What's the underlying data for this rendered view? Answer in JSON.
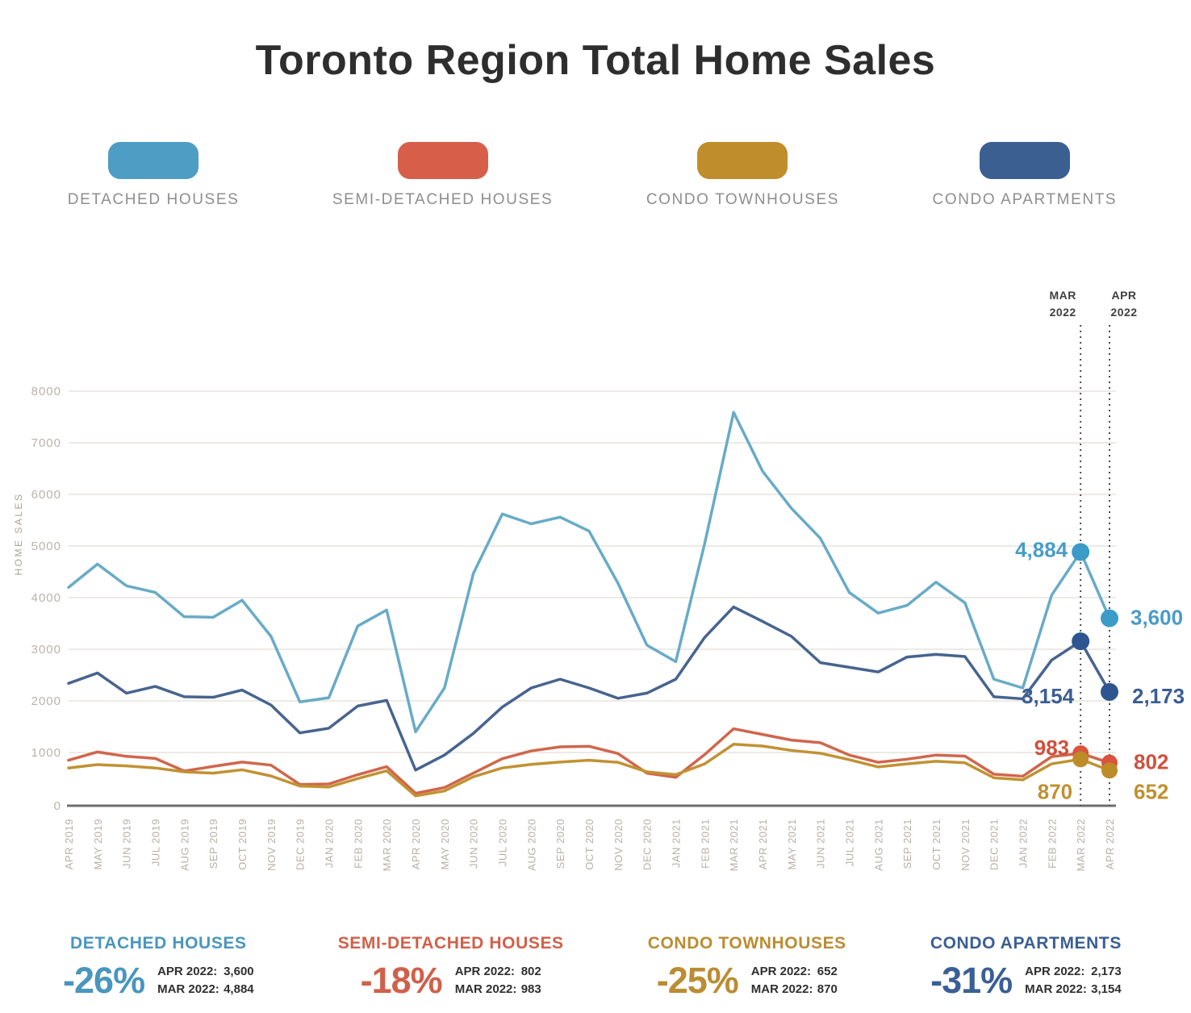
{
  "title": "Toronto Region Total Home Sales",
  "legend": [
    {
      "label": "DETACHED HOUSES",
      "color": "#4d9dc5"
    },
    {
      "label": "SEMI-DETACHED HOUSES",
      "color": "#d75f4a"
    },
    {
      "label": "CONDO TOWNHOUSES",
      "color": "#bf8d2b"
    },
    {
      "label": "CONDO APARTMENTS",
      "color": "#3c5f92"
    }
  ],
  "annotations": {
    "mar": [
      "MAR",
      "2022"
    ],
    "apr": [
      "APR",
      "2022"
    ]
  },
  "chart_data": {
    "type": "line",
    "title": "Toronto Region Total Home Sales",
    "xlabel": "",
    "ylabel": "HOME SALES",
    "ylim": [
      0,
      8000
    ],
    "y_ticks": [
      0,
      1000,
      2000,
      3000,
      4000,
      5000,
      6000,
      7000,
      8000
    ],
    "grid": true,
    "highlight_months": [
      "MAR 2022",
      "APR 2022"
    ],
    "categories": [
      "APR 2019",
      "MAY 2019",
      "JUN 2019",
      "JUL 2019",
      "AUG 2019",
      "SEP 2019",
      "OCT 2019",
      "NOV 2019",
      "DEC 2019",
      "JAN 2020",
      "FEB 2020",
      "MAR 2020",
      "APR 2020",
      "MAY 2020",
      "JUN 2020",
      "JUL 2020",
      "AUG 2020",
      "SEP 2020",
      "OCT 2020",
      "NOV 2020",
      "DEC 2020",
      "JAN 2021",
      "FEB 2021",
      "MAR 2021",
      "APR 2021",
      "MAY 2021",
      "JUN 2021",
      "JUL 2021",
      "AUG 2021",
      "SEP 2021",
      "OCT 2021",
      "NOV 2021",
      "DEC 2021",
      "JAN 2022",
      "FEB 2022",
      "MAR 2022",
      "APR 2022"
    ],
    "series": [
      {
        "name": "DETACHED HOUSES",
        "color": "#68abc7",
        "marker_color": "#3d9bc8",
        "label_color": "#4a9cc6",
        "values": [
          4200,
          4650,
          4230,
          4100,
          3630,
          3620,
          3950,
          3250,
          1980,
          2060,
          3450,
          3760,
          1400,
          2250,
          4470,
          5620,
          5430,
          5560,
          5290,
          4280,
          3080,
          2760,
          5050,
          7590,
          6450,
          5730,
          5150,
          4100,
          3700,
          3850,
          4300,
          3900,
          2420,
          2250,
          4050,
          4884,
          3600
        ],
        "end_labels": [
          "4,884",
          "3,600"
        ]
      },
      {
        "name": "SEMI-DETACHED HOUSES",
        "color": "#d0664c",
        "marker_color": "#d9533e",
        "label_color": "#d0503c",
        "values": [
          850,
          1010,
          925,
          885,
          640,
          730,
          815,
          755,
          380,
          390,
          570,
          725,
          210,
          320,
          600,
          880,
          1030,
          1110,
          1120,
          980,
          600,
          520,
          960,
          1460,
          1350,
          1240,
          1190,
          950,
          810,
          870,
          950,
          930,
          580,
          540,
          920,
          983,
          802
        ],
        "end_labels": [
          "983",
          "802"
        ]
      },
      {
        "name": "CONDO TOWNHOUSES",
        "color": "#c19232",
        "marker_color": "#bd8b28",
        "label_color": "#c0912f",
        "values": [
          700,
          765,
          740,
          700,
          625,
          600,
          665,
          545,
          350,
          330,
          495,
          645,
          160,
          255,
          530,
          700,
          770,
          815,
          850,
          810,
          625,
          570,
          780,
          1160,
          1125,
          1040,
          985,
          860,
          720,
          780,
          830,
          800,
          510,
          470,
          780,
          870,
          652
        ],
        "end_labels": [
          "870",
          "652"
        ]
      },
      {
        "name": "CONDO APARTMENTS",
        "color": "#47648e",
        "marker_color": "#2e5590",
        "label_color": "#3a5d94",
        "values": [
          2340,
          2540,
          2150,
          2280,
          2080,
          2070,
          2210,
          1920,
          1380,
          1470,
          1900,
          2010,
          660,
          950,
          1370,
          1880,
          2250,
          2420,
          2250,
          2050,
          2150,
          2420,
          3230,
          3820,
          3540,
          3250,
          2740,
          2650,
          2560,
          2850,
          2900,
          2860,
          2080,
          2040,
          2790,
          3154,
          2173
        ],
        "end_labels": [
          "3,154",
          "2,173"
        ]
      }
    ]
  },
  "summary": [
    {
      "name": "DETACHED HOUSES",
      "color": "#4a96be",
      "percent": "-26%",
      "rows": [
        [
          "APR 2022:",
          "3,600"
        ],
        [
          "MAR 2022:",
          "4,884"
        ]
      ]
    },
    {
      "name": "SEMI-DETACHED HOUSES",
      "color": "#d0604a",
      "percent": "-18%",
      "rows": [
        [
          "APR 2022:",
          "802"
        ],
        [
          "MAR 2022:",
          "983"
        ]
      ]
    },
    {
      "name": "CONDO TOWNHOUSES",
      "color": "#bb8c33",
      "percent": "-25%",
      "rows": [
        [
          "APR 2022:",
          "652"
        ],
        [
          "MAR 2022:",
          "870"
        ]
      ]
    },
    {
      "name": "CONDO APARTMENTS",
      "color": "#3a5f94",
      "percent": "-31%",
      "rows": [
        [
          "APR 2022:",
          "2,173"
        ],
        [
          "MAR 2022:",
          "3,154"
        ]
      ]
    }
  ]
}
